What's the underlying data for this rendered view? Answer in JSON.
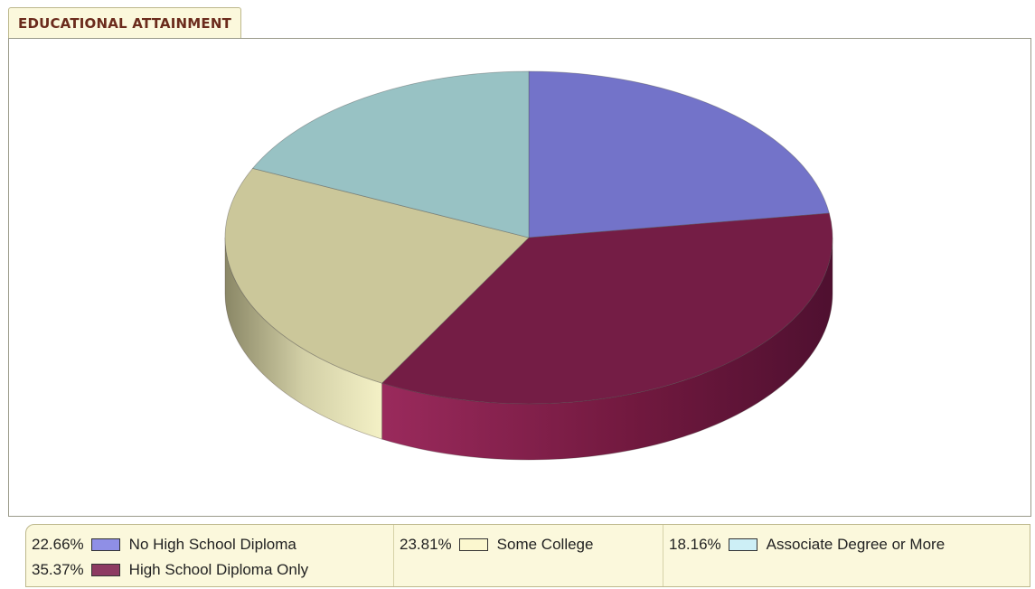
{
  "title": "EDUCATIONAL ATTAINMENT",
  "chart_data": {
    "type": "pie",
    "title": "EDUCATIONAL ATTAINMENT",
    "series": [
      {
        "name": "No High School Diploma",
        "value": 22.66,
        "percent_label": "22.66%",
        "color": "#7373c9"
      },
      {
        "name": "High School Diploma Only",
        "value": 35.37,
        "percent_label": "35.37%",
        "color": "#741d45"
      },
      {
        "name": "Some College",
        "value": 23.81,
        "percent_label": "23.81%",
        "color": "#cbc79a"
      },
      {
        "name": "Associate Degree or More",
        "value": 18.16,
        "percent_label": "18.16%",
        "color": "#98c2c4"
      }
    ],
    "legend_placement": "bottom"
  },
  "legend": {
    "swatch_colors": [
      "#8f8fe6",
      "#8d3a62",
      "#fbf7cf",
      "#cdeff6"
    ]
  }
}
